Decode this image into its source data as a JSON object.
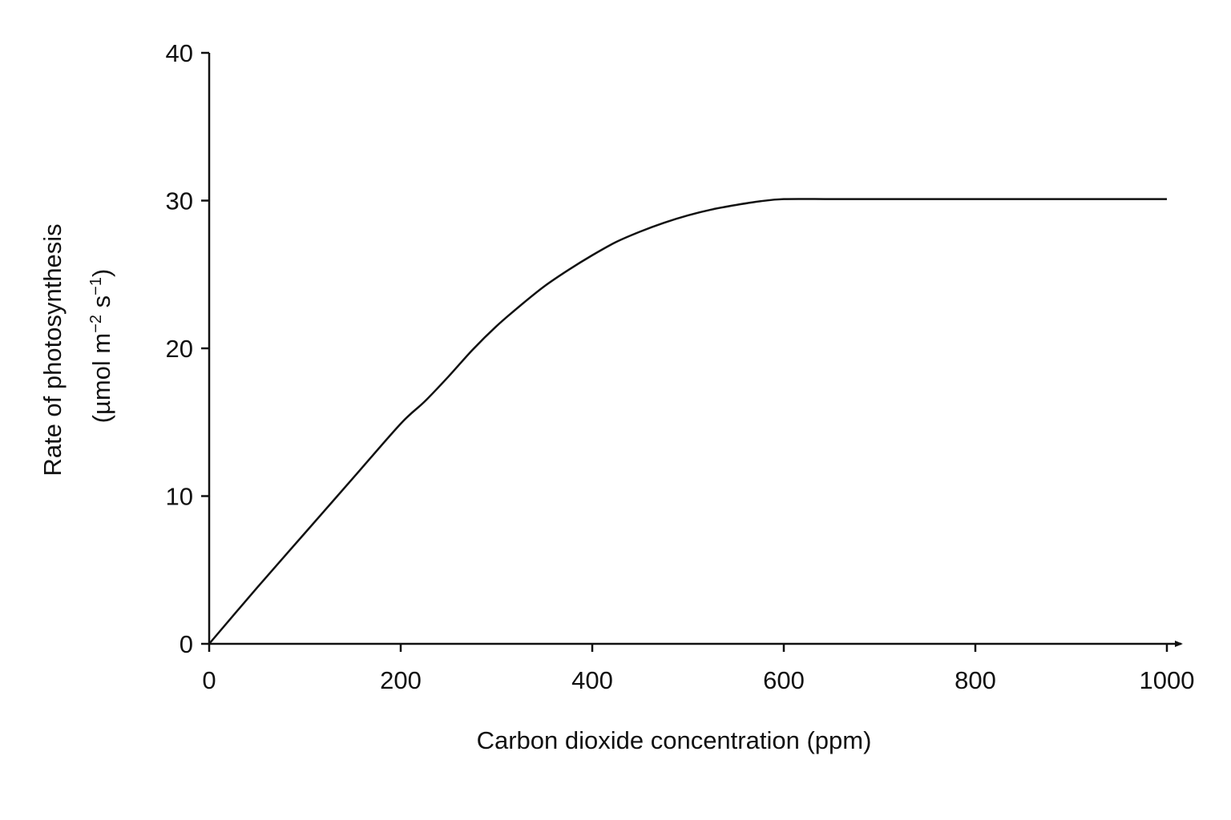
{
  "chart_data": {
    "type": "line",
    "title": "",
    "xlabel": "Carbon dioxide concentration (ppm)",
    "ylabel_line1": "Rate of photosynthesis",
    "ylabel_line2_parts": [
      "(µmol m",
      "−2",
      " s",
      "−1",
      ")"
    ],
    "xlim": [
      0,
      1000
    ],
    "ylim": [
      0,
      40
    ],
    "x_ticks": [
      0,
      200,
      400,
      600,
      800,
      1000
    ],
    "y_ticks": [
      0,
      10,
      20,
      30,
      40
    ],
    "grid": false,
    "legend": "none",
    "x_tick_labels": [
      "0",
      "200",
      "400",
      "600",
      "800",
      "1000"
    ],
    "y_tick_labels": [
      "0",
      "10",
      "20",
      "30",
      "40"
    ],
    "series": [
      {
        "color": "#111111",
        "x": [
          0,
          50,
          100,
          150,
          200,
          225,
          250,
          275,
          300,
          325,
          350,
          375,
          400,
          425,
          450,
          475,
          500,
          525,
          550,
          575,
          600,
          650,
          700,
          800,
          900,
          1000
        ],
        "y": [
          0,
          3.8,
          7.5,
          11.2,
          14.9,
          16.4,
          18.1,
          19.9,
          21.5,
          22.9,
          24.2,
          25.3,
          26.3,
          27.2,
          27.9,
          28.5,
          29.0,
          29.4,
          29.7,
          29.95,
          30.1,
          30.1,
          30.1,
          30.1,
          30.1,
          30.1
        ]
      }
    ]
  }
}
